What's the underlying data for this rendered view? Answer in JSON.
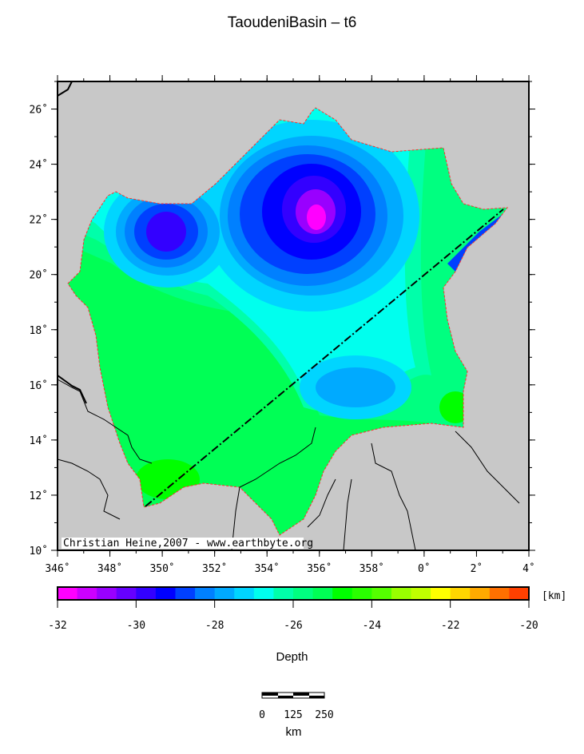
{
  "title": "TaoudeniBasin – t6",
  "map": {
    "lon_labels": [
      "346˚",
      "348˚",
      "350˚",
      "352˚",
      "354˚",
      "356˚",
      "358˚",
      "0˚",
      "2˚",
      "4˚"
    ],
    "lat_labels": [
      "10˚",
      "12˚",
      "14˚",
      "16˚",
      "18˚",
      "20˚",
      "22˚",
      "24˚",
      "26˚"
    ],
    "lon_range": [
      346,
      4
    ],
    "lat_range": [
      10,
      27
    ],
    "credit": "Christian Heine,2007 - www.earthbyte.org",
    "land_color": "#c8c8c8",
    "outline_color": "#ff0000"
  },
  "colorbar": {
    "unit": "[km]",
    "tick_labels": [
      "-32",
      "-30",
      "-28",
      "-26",
      "-24",
      "-22",
      "-20"
    ],
    "range": [
      -32,
      -20
    ],
    "step": 0.5,
    "colors": [
      "#ff00ff",
      "#cc00ff",
      "#9900ff",
      "#6600ff",
      "#3300ff",
      "#0000ff",
      "#0040ff",
      "#0080ff",
      "#00aaff",
      "#00d5ff",
      "#00ffee",
      "#00ffaa",
      "#00ff80",
      "#00ff55",
      "#00ff00",
      "#2aff00",
      "#55ff00",
      "#99ff00",
      "#c0ff00",
      "#ffff00",
      "#ffd500",
      "#ffaa00",
      "#ff7000",
      "#ff4000"
    ],
    "label": "Depth"
  },
  "scalebar": {
    "labels": [
      "0",
      "125",
      "250"
    ],
    "unit": "km"
  }
}
